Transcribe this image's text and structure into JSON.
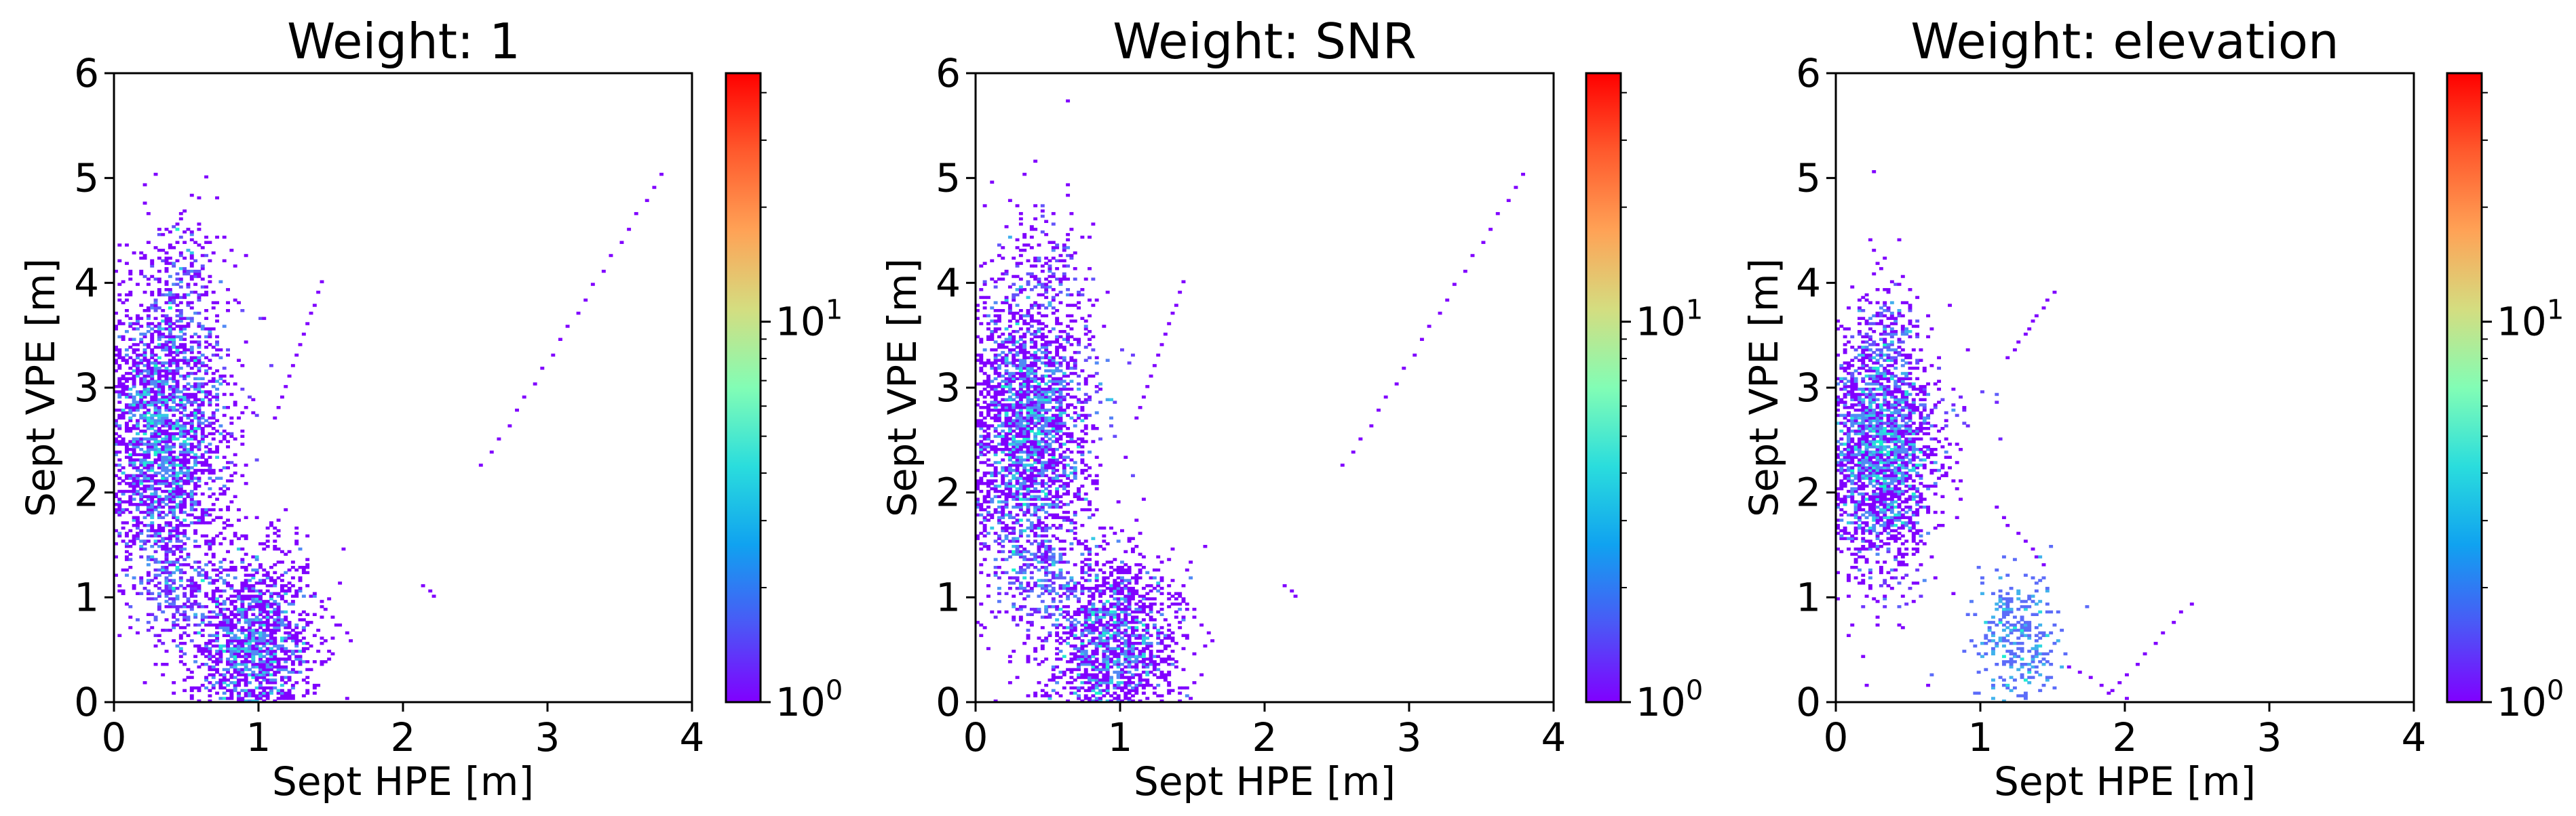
{
  "chart_data": [
    {
      "type": "heatmap",
      "title": "Weight: 1",
      "xlabel": "Sept HPE [m]",
      "ylabel": "Sept VPE [m]",
      "xlim": [
        0,
        4
      ],
      "ylim": [
        0,
        6
      ],
      "x_ticks": [
        "0",
        "1",
        "2",
        "3",
        "4"
      ],
      "y_ticks": [
        "0",
        "1",
        "2",
        "3",
        "4",
        "5",
        "6"
      ],
      "colorbar": {
        "scale": "log",
        "colormap": "rainbow",
        "range": [
          1,
          45
        ],
        "ticks": [
          {
            "base": "10",
            "exp": "0",
            "value": 1
          },
          {
            "base": "10",
            "exp": "1",
            "value": 10
          }
        ]
      },
      "clusters": [
        {
          "cx": 0.35,
          "cy": 2.6,
          "sx": 0.22,
          "sy": 0.75,
          "n": 2600,
          "peak": 1.0
        },
        {
          "cx": 0.5,
          "cy": 4.2,
          "sx": 0.18,
          "sy": 0.35,
          "n": 550,
          "peak": 0.5
        },
        {
          "cx": 0.95,
          "cy": 3.1,
          "sx": 0.25,
          "sy": 0.4,
          "n": 420,
          "peak": 0.45
        },
        {
          "cx": 0.95,
          "cy": 0.55,
          "sx": 0.22,
          "sy": 0.45,
          "n": 1500,
          "peak": 1.0
        },
        {
          "cx": 0.4,
          "cy": 1.1,
          "sx": 0.15,
          "sy": 0.3,
          "n": 500,
          "peak": 0.6
        }
      ],
      "trails": [
        {
          "x1": 2.55,
          "y1": 2.25,
          "x2": 3.8,
          "y2": 5.05,
          "n": 22
        },
        {
          "x1": 2.15,
          "y1": 1.12,
          "x2": 2.22,
          "y2": 1.0,
          "n": 3
        },
        {
          "x1": 1.1,
          "y1": 2.7,
          "x2": 1.45,
          "y2": 4.0,
          "n": 14
        },
        {
          "x1": 1.25,
          "y1": 1.25,
          "x2": 1.65,
          "y2": 0.6,
          "n": 10
        }
      ]
    },
    {
      "type": "heatmap",
      "title": "Weight: SNR",
      "xlabel": "Sept HPE [m]",
      "ylabel": "Sept VPE [m]",
      "xlim": [
        0,
        4
      ],
      "ylim": [
        0,
        6
      ],
      "x_ticks": [
        "0",
        "1",
        "2",
        "3",
        "4"
      ],
      "y_ticks": [
        "0",
        "1",
        "2",
        "3",
        "4",
        "5",
        "6"
      ],
      "colorbar": {
        "scale": "log",
        "colormap": "rainbow",
        "range": [
          1,
          45
        ],
        "ticks": [
          {
            "base": "10",
            "exp": "0",
            "value": 1
          },
          {
            "base": "10",
            "exp": "1",
            "value": 10
          }
        ]
      },
      "clusters": [
        {
          "cx": 0.35,
          "cy": 2.6,
          "sx": 0.22,
          "sy": 0.75,
          "n": 2600,
          "peak": 1.0
        },
        {
          "cx": 0.5,
          "cy": 4.2,
          "sx": 0.18,
          "sy": 0.35,
          "n": 550,
          "peak": 0.5
        },
        {
          "cx": 0.95,
          "cy": 3.1,
          "sx": 0.25,
          "sy": 0.4,
          "n": 420,
          "peak": 0.45
        },
        {
          "cx": 0.95,
          "cy": 0.55,
          "sx": 0.22,
          "sy": 0.45,
          "n": 1500,
          "peak": 1.0
        },
        {
          "cx": 0.4,
          "cy": 1.1,
          "sx": 0.15,
          "sy": 0.3,
          "n": 500,
          "peak": 0.6
        }
      ],
      "trails": [
        {
          "x1": 2.55,
          "y1": 2.25,
          "x2": 3.8,
          "y2": 5.05,
          "n": 22
        },
        {
          "x1": 2.15,
          "y1": 1.12,
          "x2": 2.22,
          "y2": 1.0,
          "n": 3
        },
        {
          "x1": 1.1,
          "y1": 2.7,
          "x2": 1.45,
          "y2": 4.0,
          "n": 14
        },
        {
          "x1": 1.25,
          "y1": 1.25,
          "x2": 1.65,
          "y2": 0.6,
          "n": 10
        }
      ]
    },
    {
      "type": "heatmap",
      "title": "Weight: elevation",
      "xlabel": "Sept HPE [m]",
      "ylabel": "Sept VPE [m]",
      "xlim": [
        0,
        4
      ],
      "ylim": [
        0,
        6
      ],
      "x_ticks": [
        "0",
        "1",
        "2",
        "3",
        "4"
      ],
      "y_ticks": [
        "0",
        "1",
        "2",
        "3",
        "4",
        "5",
        "6"
      ],
      "colorbar": {
        "scale": "log",
        "colormap": "rainbow",
        "range": [
          1,
          45
        ],
        "ticks": [
          {
            "base": "10",
            "exp": "0",
            "value": 1
          },
          {
            "base": "10",
            "exp": "1",
            "value": 10
          }
        ]
      },
      "clusters": [
        {
          "cx": 0.3,
          "cy": 2.4,
          "sx": 0.2,
          "sy": 0.6,
          "n": 2300,
          "peak": 1.0
        },
        {
          "cx": 0.35,
          "cy": 3.6,
          "sx": 0.15,
          "sy": 0.3,
          "n": 450,
          "peak": 0.5
        },
        {
          "cx": 0.9,
          "cy": 2.9,
          "sx": 0.25,
          "sy": 0.35,
          "n": 420,
          "peak": 0.4
        },
        {
          "cx": 1.25,
          "cy": 0.6,
          "sx": 0.2,
          "sy": 0.45,
          "n": 1300,
          "peak": 0.85
        },
        {
          "cx": 0.45,
          "cy": 0.9,
          "sx": 0.12,
          "sy": 0.25,
          "n": 200,
          "peak": 0.3
        }
      ],
      "trails": [
        {
          "x1": 1.9,
          "y1": 0.08,
          "x2": 2.45,
          "y2": 0.95,
          "n": 10
        },
        {
          "x1": 1.6,
          "y1": 0.35,
          "x2": 2.0,
          "y2": 0.05,
          "n": 6
        },
        {
          "x1": 1.2,
          "y1": 3.3,
          "x2": 1.5,
          "y2": 3.9,
          "n": 10
        },
        {
          "x1": 1.1,
          "y1": 1.85,
          "x2": 1.45,
          "y2": 1.3,
          "n": 8
        }
      ]
    }
  ]
}
